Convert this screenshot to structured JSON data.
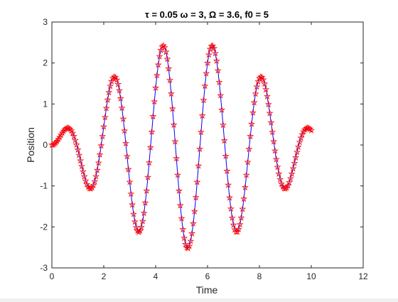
{
  "chart_data": {
    "type": "line",
    "title": "τ = 0.05  ω = 3,  Ω = 3.6,  f0 = 5",
    "xlabel": "Time",
    "ylabel": "Position",
    "xlim": [
      0,
      12
    ],
    "ylim": [
      -3,
      3
    ],
    "xticks": [
      "0",
      "2",
      "4",
      "6",
      "8",
      "10",
      "12"
    ],
    "yticks": [
      "-3",
      "-2",
      "-1",
      "0",
      "1",
      "2",
      "3"
    ],
    "grid": false,
    "legend": "none",
    "colors": {
      "line": "#0000ff",
      "markers": "#ff0000"
    },
    "series": [
      {
        "style": "solid line with star markers",
        "model": "x(t) = f0 / (ω² − Ω²) · (cos Ωt − cos ωt)",
        "params": {
          "f0": 5,
          "omega": 3,
          "Omega": 3.6
        },
        "x_start": 0,
        "x_end": 10,
        "x_step": 0.05,
        "approx_extrema": [
          {
            "x": 0.95,
            "y": 0.78
          },
          {
            "x": 1.9,
            "y": -1.5
          },
          {
            "x": 2.85,
            "y": 2.08
          },
          {
            "x": 3.8,
            "y": -2.52
          },
          {
            "x": 4.75,
            "y": 2.72
          },
          {
            "x": 5.7,
            "y": -2.72
          },
          {
            "x": 6.65,
            "y": 2.5
          },
          {
            "x": 7.6,
            "y": -2.07
          },
          {
            "x": 8.55,
            "y": 1.45
          },
          {
            "x": 9.5,
            "y": -0.72
          }
        ]
      }
    ]
  }
}
